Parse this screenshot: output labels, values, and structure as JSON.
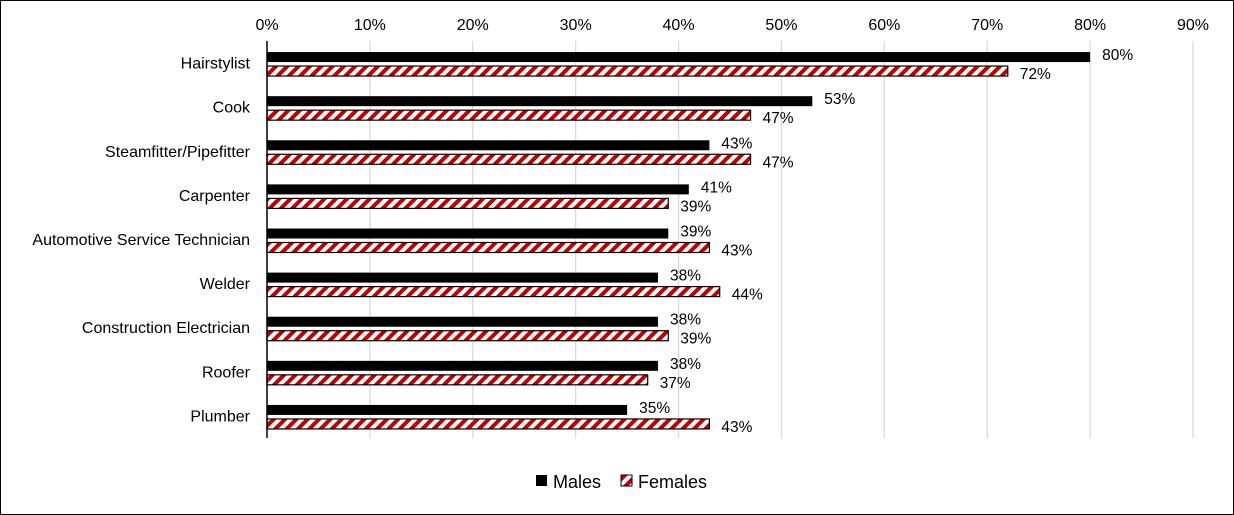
{
  "chart_data": {
    "type": "bar",
    "orientation": "horizontal",
    "categories": [
      "Hairstylist",
      "Cook",
      "Steamfitter/Pipefitter",
      "Carpenter",
      "Automotive Service Technician",
      "Welder",
      "Construction Electrician",
      "Roofer",
      "Plumber"
    ],
    "series": [
      {
        "name": "Males",
        "values": [
          80,
          53,
          43,
          41,
          39,
          38,
          38,
          38,
          35
        ],
        "labels": [
          "80%",
          "53%",
          "43%",
          "41%",
          "39%",
          "38%",
          "38%",
          "38%",
          "35%"
        ],
        "color": "#000000",
        "pattern": "solid"
      },
      {
        "name": "Females",
        "values": [
          72,
          47,
          47,
          39,
          43,
          44,
          39,
          37,
          43
        ],
        "labels": [
          "72%",
          "47%",
          "47%",
          "39%",
          "43%",
          "44%",
          "39%",
          "37%",
          "43%"
        ],
        "color": "#c00000",
        "pattern": "diagonal-stripes"
      }
    ],
    "xlim": [
      0,
      90
    ],
    "xticks": [
      0,
      10,
      20,
      30,
      40,
      50,
      60,
      70,
      80,
      90
    ],
    "xtick_labels": [
      "0%",
      "10%",
      "20%",
      "30%",
      "40%",
      "50%",
      "60%",
      "70%",
      "80%",
      "90%"
    ],
    "x_axis_position": "top",
    "grid": true,
    "legend_position": "bottom"
  }
}
